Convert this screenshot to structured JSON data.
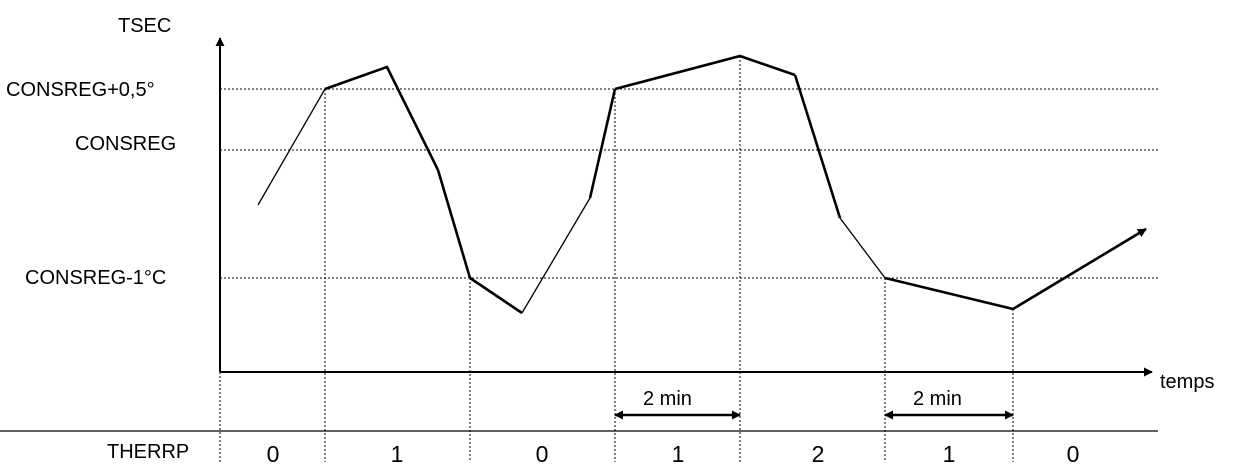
{
  "diagram": {
    "y_axis_label": "TSEC",
    "x_axis_label": "temps",
    "levels": {
      "upper": "CONSREG+0,5°",
      "setpoint": "CONSREG",
      "lower": "CONSREG-1°C"
    },
    "durations": [
      "2 min",
      "2 min"
    ],
    "state_row_label": "THERRP",
    "states": [
      "0",
      "1",
      "0",
      "1",
      "2",
      "1",
      "0"
    ]
  }
}
